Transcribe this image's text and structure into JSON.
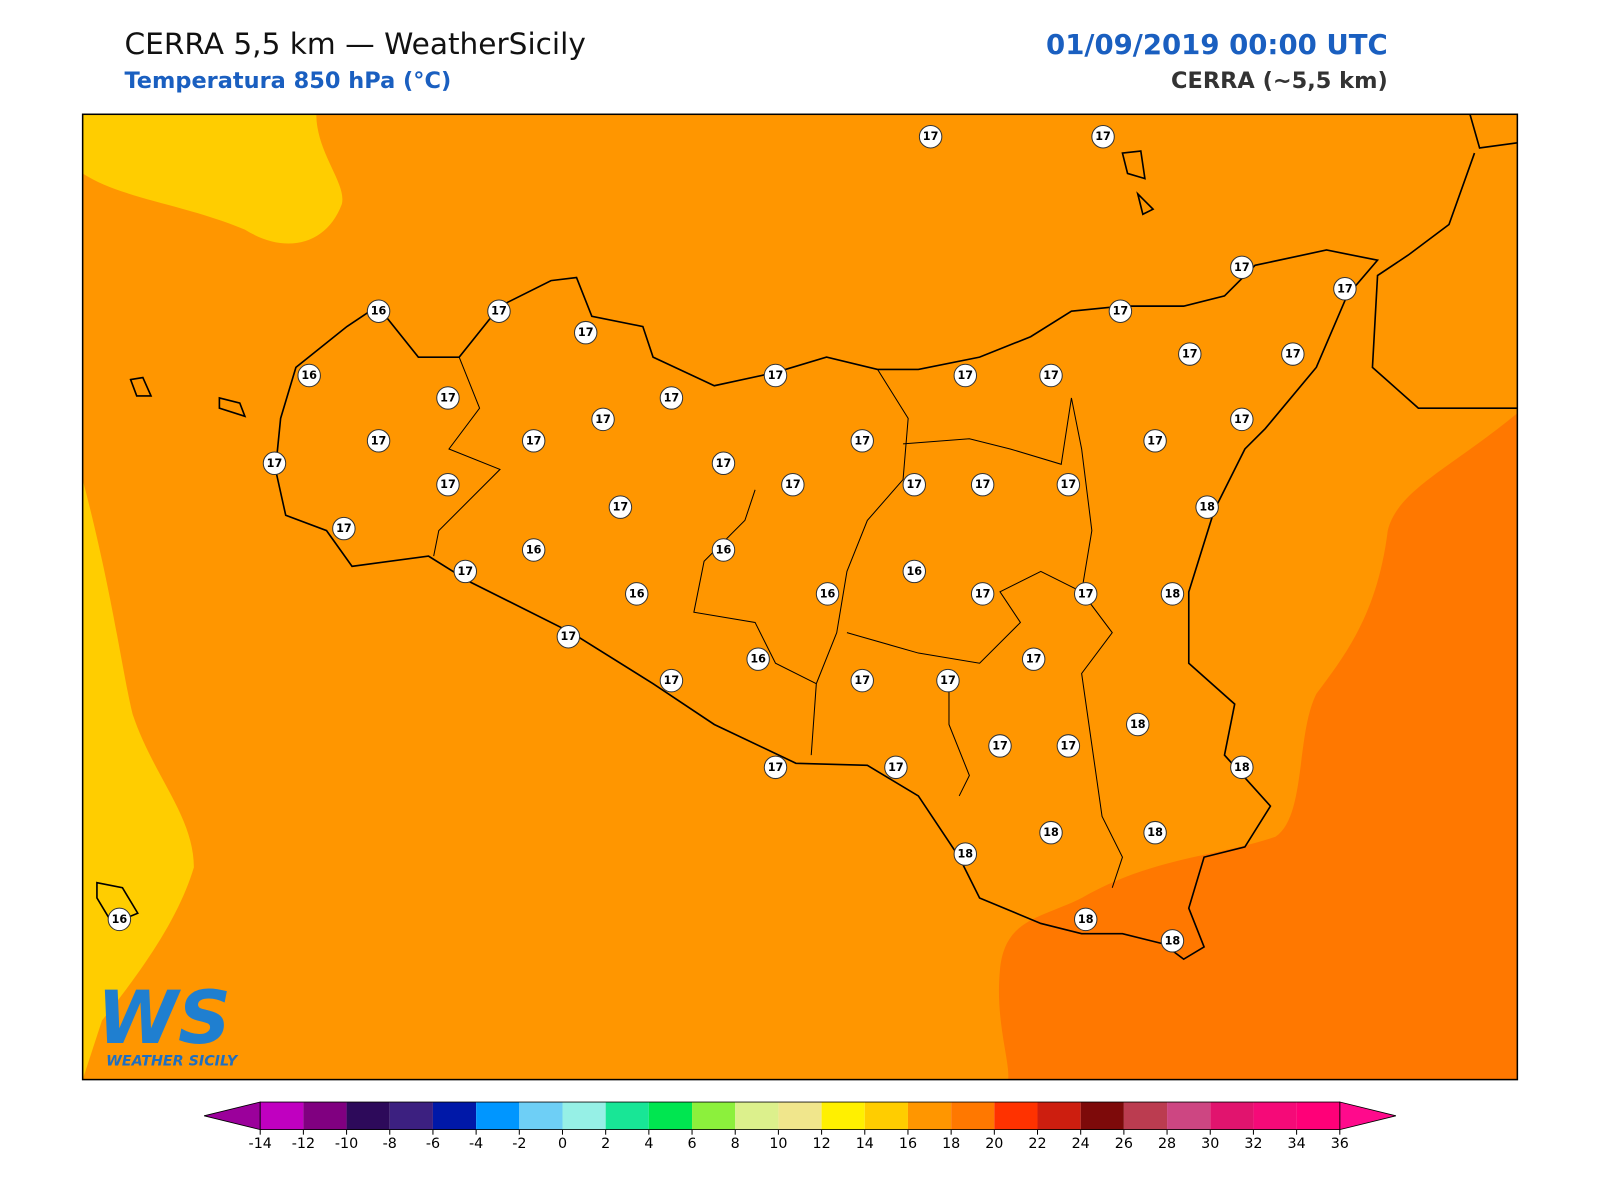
{
  "header": {
    "title": "CERRA 5,5 km — WeatherSicily",
    "subtitle": "Temperatura 850 hPa (°C)",
    "datetime": "01/09/2019 00:00 UTC",
    "model": "CERRA (~5,5 km)"
  },
  "map": {
    "points": [
      17,
      17,
      16,
      17,
      17,
      16,
      17,
      17,
      17,
      17,
      17,
      17,
      17,
      17,
      17,
      17,
      17,
      17,
      17,
      17,
      17,
      17,
      17,
      17,
      17,
      17,
      17,
      17,
      17,
      17,
      18,
      17,
      16,
      16,
      16,
      17,
      16,
      16,
      17,
      17,
      18,
      17,
      17,
      16,
      17,
      17,
      17,
      18,
      17,
      17,
      18,
      17,
      17,
      18,
      18,
      18,
      18,
      18,
      16
    ]
  },
  "colorbar": {
    "ticks": [
      -14,
      -12,
      -10,
      -8,
      -6,
      -4,
      -2,
      0,
      2,
      4,
      6,
      8,
      10,
      12,
      14,
      16,
      18,
      20,
      22,
      24,
      26,
      28,
      30,
      32,
      34,
      36
    ],
    "colors": [
      "#c000c0",
      "#800080",
      "#2d0a5a",
      "#3c2080",
      "#0018a8",
      "#0096ff",
      "#6ecff6",
      "#96f0e6",
      "#18e696",
      "#00e650",
      "#8cf03c",
      "#dcf08c",
      "#f0e68c",
      "#fff000",
      "#ffcd00",
      "#ff9600",
      "#ff7800",
      "#ff3200",
      "#cd1e0f",
      "#7d0a0a",
      "#bb3c50",
      "#cd4682",
      "#e1146e",
      "#f50a78",
      "#ff0078"
    ],
    "under_color": "#9b009b",
    "over_color": "#ff0a8c"
  },
  "logo": {
    "mark": "WS",
    "name": "WEATHER SICILY"
  }
}
